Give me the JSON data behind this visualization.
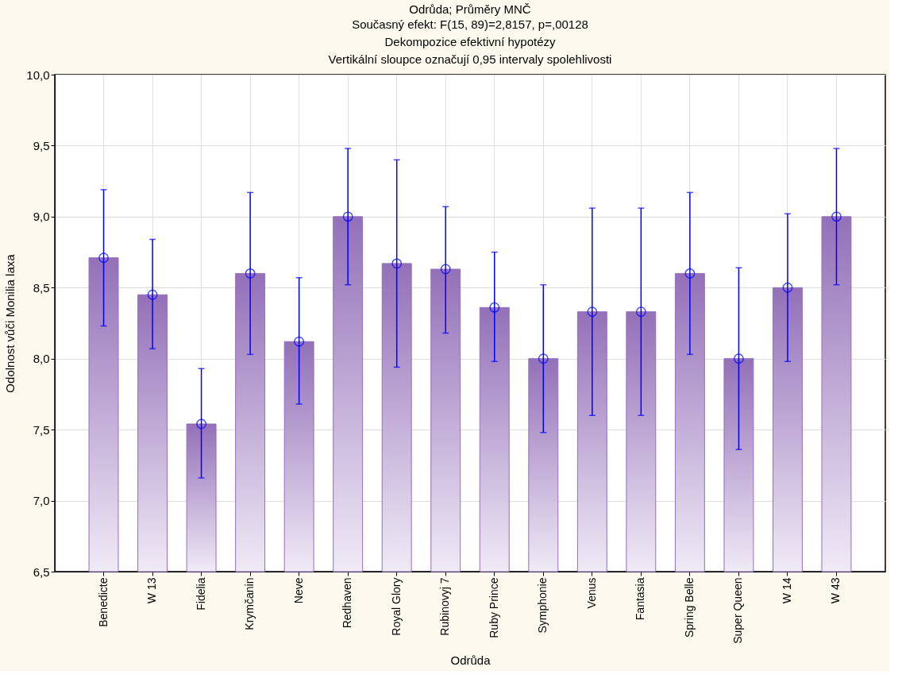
{
  "chart_data": {
    "type": "bar",
    "title": "Odrůda; Průměry MNČ",
    "subtitle": "Současný efekt: F(15, 89)=2,8157, p=,00128\nDekompozice efektivní hypotézy\nVertikální sloupce označují 0,95 intervaly spolehlivosti",
    "xlabel": "Odrůda",
    "ylabel": "Odolnost vůči Monilia laxa",
    "categories": [
      "Benedicte",
      "W 13",
      "Fidelia",
      "Krymčanin",
      "Neve",
      "Redhaven",
      "Royal Glory",
      "Rubinovyj 7",
      "Ruby Prince",
      "Symphonie",
      "Venus",
      "Fantasia",
      "Spring Belle",
      "Super Queen",
      "W 14",
      "W 43"
    ],
    "series": [
      {
        "color": "#9370b8",
        "values": [
          8.71,
          8.45,
          7.54,
          8.6,
          8.12,
          9.0,
          8.67,
          8.63,
          8.36,
          8.0,
          8.33,
          8.33,
          8.6,
          8.0,
          8.5,
          9.0
        ]
      },
      {
        "type": "scatter",
        "color": "#0000ff",
        "x": [
          "Benedicte",
          "W 13",
          "Fidelia",
          "Krymčanin",
          "Neve",
          "Redhaven",
          "Royal Glory",
          "Rubinovyj 7",
          "Ruby Prince",
          "Symphonie",
          "Venus",
          "Fantasia",
          "Spring Belle",
          "Super Queen",
          "W 14",
          "W 43"
        ],
        "values": [
          8.71,
          8.45,
          7.54,
          8.6,
          8.12,
          9.0,
          8.67,
          8.63,
          8.36,
          8.0,
          8.33,
          8.33,
          8.6,
          8.0,
          8.5,
          9.0
        ],
        "errors": [
          [
            8.23,
            9.19
          ],
          [
            8.07,
            8.84
          ],
          [
            7.16,
            7.93
          ],
          [
            8.03,
            9.17
          ],
          [
            7.68,
            8.57
          ],
          [
            8.52,
            9.48
          ],
          [
            7.94,
            9.4
          ],
          [
            8.18,
            9.07
          ],
          [
            7.98,
            8.75
          ],
          [
            7.48,
            8.52
          ],
          [
            7.6,
            9.06
          ],
          [
            7.6,
            9.06
          ],
          [
            8.03,
            9.17
          ],
          [
            7.36,
            8.64
          ],
          [
            7.98,
            9.02
          ],
          [
            8.52,
            9.48
          ]
        ]
      }
    ],
    "ylim": [
      6.5,
      10.0
    ],
    "yticks": [
      {
        "value": 6.5,
        "label": "6,5"
      },
      {
        "value": 7.0,
        "label": "7,0"
      },
      {
        "value": 7.5,
        "label": "7,5"
      },
      {
        "value": 8.0,
        "label": "8,0"
      },
      {
        "value": 8.5,
        "label": "8,5"
      },
      {
        "value": 9.0,
        "label": "9,0"
      },
      {
        "value": 9.5,
        "label": "9,5"
      },
      {
        "value": 10.0,
        "label": "10,0"
      }
    ],
    "grid": true,
    "marker": "circle"
  }
}
